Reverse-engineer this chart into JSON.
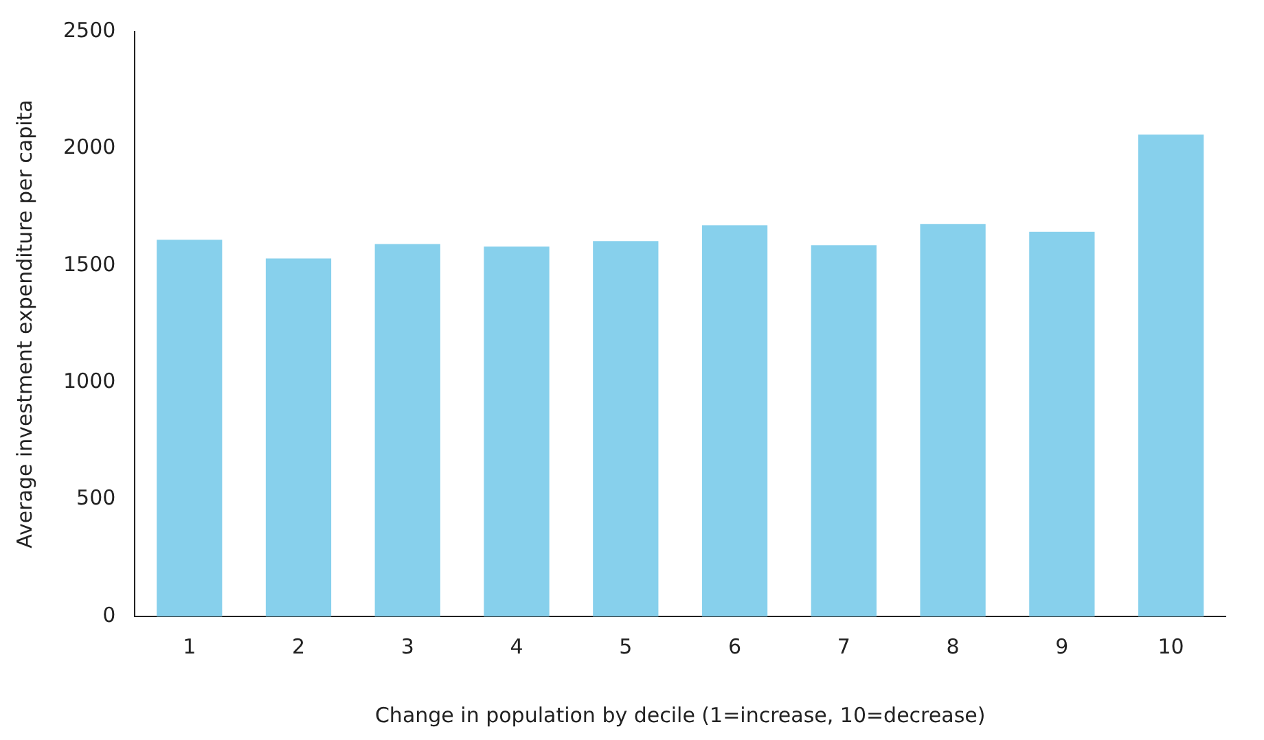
{
  "chart_data": {
    "type": "bar",
    "xlabel": "Change in population by decile (1=increase, 10=decrease)",
    "ylabel": "Average investment expenditure per capita",
    "categories": [
      "1",
      "2",
      "3",
      "4",
      "5",
      "6",
      "7",
      "8",
      "9",
      "10"
    ],
    "values": [
      1610,
      1530,
      1592,
      1581,
      1604,
      1672,
      1587,
      1678,
      1644,
      2060
    ],
    "color": "#87d0ec",
    "ylim": [
      0,
      2500
    ],
    "yticks": [
      0,
      500,
      1000,
      1500,
      2000,
      2500
    ],
    "grid": false
  }
}
